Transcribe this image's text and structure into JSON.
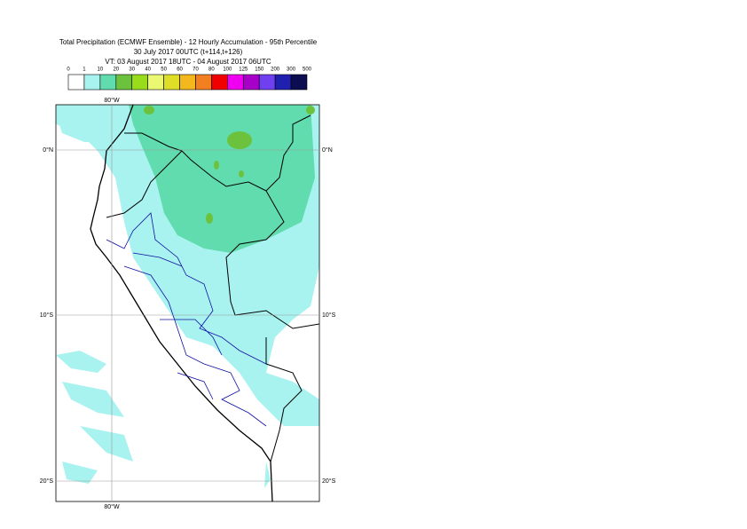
{
  "header": {
    "title": "Total Precipitation (ECMWF Ensemble) - 12 Hourly Accumulation - 95th Percentile",
    "subtitle": "30 July 2017 00UTC (t+114,t+126)",
    "valid_time": "VT: 03 August 2017 18UTC - 04 August 2017 06UTC"
  },
  "legend": {
    "levels": [
      0,
      1,
      10,
      20,
      30,
      40,
      50,
      60,
      70,
      80,
      100,
      125,
      150,
      200,
      300,
      500
    ],
    "colors": [
      "#ffffff",
      "#a8f2f0",
      "#60dcae",
      "#6cc23c",
      "#98dc1c",
      "#eaf872",
      "#dede28",
      "#f2b81e",
      "#f28020",
      "#f00000",
      "#f000f0",
      "#a800c8",
      "#7040f0",
      "#2020b0",
      "#0c0c50"
    ]
  },
  "map": {
    "lon_labels": [
      "80°W"
    ],
    "lat_labels": [
      "0°N",
      "10°S",
      "20°S"
    ]
  }
}
